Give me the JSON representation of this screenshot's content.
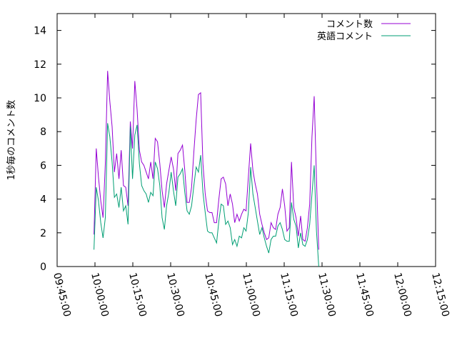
{
  "chart_data": {
    "type": "line",
    "title": "",
    "ylabel": "1秒毎のコメント数",
    "xlabel": "",
    "ylim": [
      0,
      15
    ],
    "y_ticks": [
      0,
      2,
      4,
      6,
      8,
      10,
      12,
      14
    ],
    "y_tick_labels": [
      "0",
      "2",
      "4",
      "6",
      "8",
      "10",
      "12",
      "14"
    ],
    "x_range_minutes": [
      585,
      735
    ],
    "x_ticks": [
      585,
      600,
      615,
      630,
      645,
      660,
      675,
      690,
      705,
      720,
      735
    ],
    "x_tick_labels": [
      "09:45:00",
      "10:00:00",
      "10:15:00",
      "10:30:00",
      "10:45:00",
      "11:00:00",
      "11:15:00",
      "11:30:00",
      "11:45:00",
      "12:00:00",
      "12:15:00"
    ],
    "grid": false,
    "legend_position": "top-right",
    "series": [
      {
        "name": "コメント数",
        "color": "#9400d3",
        "points": [
          [
            599.6,
            1.9
          ],
          [
            600.5,
            7.0
          ],
          [
            601.4,
            5.3
          ],
          [
            602.3,
            3.9
          ],
          [
            603.2,
            2.9
          ],
          [
            604.1,
            6.1
          ],
          [
            605.0,
            11.6
          ],
          [
            605.9,
            9.8
          ],
          [
            606.8,
            8.3
          ],
          [
            607.7,
            5.6
          ],
          [
            608.6,
            6.7
          ],
          [
            609.5,
            5.2
          ],
          [
            610.4,
            6.9
          ],
          [
            611.3,
            4.8
          ],
          [
            612.2,
            4.7
          ],
          [
            613.1,
            3.6
          ],
          [
            614.0,
            8.6
          ],
          [
            614.9,
            7.0
          ],
          [
            615.8,
            11.0
          ],
          [
            616.7,
            9.3
          ],
          [
            617.6,
            6.9
          ],
          [
            618.5,
            6.2
          ],
          [
            619.4,
            6.0
          ],
          [
            620.3,
            5.6
          ],
          [
            621.2,
            5.2
          ],
          [
            622.1,
            6.2
          ],
          [
            623.0,
            5.2
          ],
          [
            623.9,
            7.6
          ],
          [
            624.8,
            7.4
          ],
          [
            625.7,
            6.1
          ],
          [
            626.6,
            4.5
          ],
          [
            627.5,
            3.5
          ],
          [
            628.4,
            4.9
          ],
          [
            629.3,
            5.7
          ],
          [
            630.2,
            6.5
          ],
          [
            631.1,
            5.8
          ],
          [
            632.0,
            4.5
          ],
          [
            632.9,
            6.7
          ],
          [
            633.8,
            6.9
          ],
          [
            634.7,
            7.2
          ],
          [
            635.6,
            5.7
          ],
          [
            636.5,
            3.8
          ],
          [
            637.4,
            3.8
          ],
          [
            638.3,
            4.7
          ],
          [
            639.2,
            6.8
          ],
          [
            640.1,
            8.7
          ],
          [
            641.0,
            10.2
          ],
          [
            641.9,
            10.3
          ],
          [
            642.8,
            6.1
          ],
          [
            643.7,
            4.3
          ],
          [
            644.6,
            3.3
          ],
          [
            645.5,
            3.2
          ],
          [
            646.4,
            3.2
          ],
          [
            647.3,
            2.6
          ],
          [
            648.2,
            2.6
          ],
          [
            649.1,
            4.0
          ],
          [
            650.0,
            5.2
          ],
          [
            650.9,
            5.3
          ],
          [
            651.8,
            4.9
          ],
          [
            652.7,
            3.6
          ],
          [
            653.6,
            4.3
          ],
          [
            654.5,
            3.7
          ],
          [
            655.4,
            2.6
          ],
          [
            656.3,
            3.1
          ],
          [
            657.2,
            2.7
          ],
          [
            658.1,
            3.1
          ],
          [
            659.0,
            3.4
          ],
          [
            659.9,
            3.3
          ],
          [
            660.8,
            5.3
          ],
          [
            661.7,
            7.3
          ],
          [
            662.6,
            5.7
          ],
          [
            663.5,
            4.9
          ],
          [
            664.4,
            4.3
          ],
          [
            665.3,
            3.1
          ],
          [
            666.2,
            2.5
          ],
          [
            667.1,
            2.0
          ],
          [
            668.0,
            1.6
          ],
          [
            668.9,
            1.7
          ],
          [
            669.8,
            2.6
          ],
          [
            670.7,
            2.3
          ],
          [
            671.6,
            2.2
          ],
          [
            672.5,
            3.1
          ],
          [
            673.4,
            3.5
          ],
          [
            674.3,
            4.6
          ],
          [
            675.2,
            3.6
          ],
          [
            676.1,
            2.1
          ],
          [
            677.0,
            2.3
          ],
          [
            677.9,
            6.2
          ],
          [
            678.8,
            3.5
          ],
          [
            679.7,
            2.9
          ],
          [
            680.6,
            1.8
          ],
          [
            681.5,
            3.0
          ],
          [
            682.4,
            1.6
          ],
          [
            683.3,
            1.5
          ],
          [
            684.2,
            2.3
          ],
          [
            685.1,
            3.7
          ],
          [
            686.0,
            7.7
          ],
          [
            686.9,
            10.1
          ],
          [
            687.8,
            5.2
          ],
          [
            688.7,
            1.0
          ]
        ]
      },
      {
        "name": "英語コメント",
        "color": "#009e73",
        "points": [
          [
            599.6,
            1.0
          ],
          [
            600.5,
            4.7
          ],
          [
            601.4,
            3.9
          ],
          [
            602.3,
            2.6
          ],
          [
            603.2,
            1.7
          ],
          [
            604.1,
            2.9
          ],
          [
            605.0,
            8.5
          ],
          [
            605.9,
            7.7
          ],
          [
            606.8,
            6.2
          ],
          [
            607.7,
            4.1
          ],
          [
            608.6,
            4.3
          ],
          [
            609.5,
            3.5
          ],
          [
            610.4,
            4.7
          ],
          [
            611.3,
            3.3
          ],
          [
            612.2,
            3.6
          ],
          [
            613.1,
            2.5
          ],
          [
            614.0,
            8.3
          ],
          [
            614.9,
            5.2
          ],
          [
            615.8,
            7.8
          ],
          [
            616.7,
            8.4
          ],
          [
            617.6,
            6.1
          ],
          [
            618.5,
            4.8
          ],
          [
            619.4,
            4.5
          ],
          [
            620.3,
            4.3
          ],
          [
            621.2,
            3.8
          ],
          [
            622.1,
            4.4
          ],
          [
            623.0,
            4.2
          ],
          [
            623.9,
            6.2
          ],
          [
            624.8,
            5.8
          ],
          [
            625.7,
            4.8
          ],
          [
            626.6,
            2.9
          ],
          [
            627.5,
            2.2
          ],
          [
            628.4,
            3.6
          ],
          [
            629.3,
            4.4
          ],
          [
            630.2,
            5.6
          ],
          [
            631.1,
            4.5
          ],
          [
            632.0,
            3.6
          ],
          [
            632.9,
            5.3
          ],
          [
            633.8,
            5.5
          ],
          [
            634.7,
            5.8
          ],
          [
            635.6,
            4.4
          ],
          [
            636.5,
            3.3
          ],
          [
            637.4,
            3.1
          ],
          [
            638.3,
            3.6
          ],
          [
            639.2,
            4.8
          ],
          [
            640.1,
            5.9
          ],
          [
            641.0,
            5.6
          ],
          [
            641.9,
            6.6
          ],
          [
            642.8,
            4.4
          ],
          [
            643.7,
            3.2
          ],
          [
            644.6,
            2.1
          ],
          [
            645.5,
            2.0
          ],
          [
            646.4,
            2.0
          ],
          [
            647.3,
            1.7
          ],
          [
            648.2,
            1.4
          ],
          [
            649.1,
            2.7
          ],
          [
            650.0,
            3.7
          ],
          [
            650.9,
            3.6
          ],
          [
            651.8,
            2.5
          ],
          [
            652.7,
            2.7
          ],
          [
            653.6,
            2.3
          ],
          [
            654.5,
            1.3
          ],
          [
            655.4,
            1.6
          ],
          [
            656.3,
            1.2
          ],
          [
            657.2,
            1.8
          ],
          [
            658.1,
            1.7
          ],
          [
            659.0,
            2.3
          ],
          [
            659.9,
            2.1
          ],
          [
            660.8,
            3.2
          ],
          [
            661.7,
            5.9
          ],
          [
            662.6,
            4.3
          ],
          [
            663.5,
            3.5
          ],
          [
            664.4,
            2.7
          ],
          [
            665.3,
            1.9
          ],
          [
            666.2,
            2.3
          ],
          [
            667.1,
            1.7
          ],
          [
            668.0,
            1.2
          ],
          [
            668.9,
            0.8
          ],
          [
            669.8,
            1.6
          ],
          [
            670.7,
            1.8
          ],
          [
            671.6,
            1.8
          ],
          [
            672.5,
            2.4
          ],
          [
            673.4,
            2.6
          ],
          [
            674.3,
            2.2
          ],
          [
            675.2,
            1.6
          ],
          [
            676.1,
            1.5
          ],
          [
            677.0,
            1.5
          ],
          [
            677.9,
            3.8
          ],
          [
            678.8,
            2.8
          ],
          [
            679.7,
            2.4
          ],
          [
            680.6,
            1.1
          ],
          [
            681.5,
            2.0
          ],
          [
            682.4,
            1.3
          ],
          [
            683.3,
            1.2
          ],
          [
            684.2,
            1.6
          ],
          [
            685.1,
            2.5
          ],
          [
            686.0,
            4.3
          ],
          [
            686.9,
            6.0
          ],
          [
            687.8,
            2.1
          ],
          [
            688.7,
            0.0
          ]
        ]
      }
    ]
  }
}
